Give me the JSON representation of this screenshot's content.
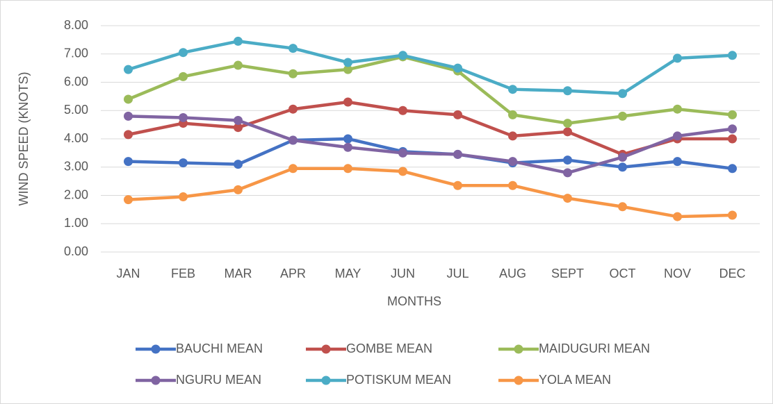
{
  "chart_data": {
    "type": "line",
    "categories": [
      "JAN",
      "FEB",
      "MAR",
      "APR",
      "MAY",
      "JUN",
      "JUL",
      "AUG",
      "SEPT",
      "OCT",
      "NOV",
      "DEC"
    ],
    "x_label": "MONTHS",
    "y_label": "WIND SPEED (KNOTS)",
    "ylim": [
      0,
      8
    ],
    "yticks": [
      {
        "value": 0,
        "label": "0.00"
      },
      {
        "value": 1,
        "label": "1.00"
      },
      {
        "value": 2,
        "label": "2.00"
      },
      {
        "value": 3,
        "label": "3.00"
      },
      {
        "value": 4,
        "label": "4.00"
      },
      {
        "value": 5,
        "label": "5.00"
      },
      {
        "value": 6,
        "label": "6.00"
      },
      {
        "value": 7,
        "label": "7.00"
      },
      {
        "value": 8,
        "label": "8.00"
      }
    ],
    "grid": true,
    "legend": "bottom",
    "series": [
      {
        "name": "BAUCHI MEAN",
        "color": "#4472c4",
        "values": [
          3.2,
          3.15,
          3.1,
          3.95,
          4.0,
          3.55,
          3.45,
          3.15,
          3.25,
          3.0,
          3.2,
          2.95
        ]
      },
      {
        "name": "GOMBE MEAN",
        "color": "#c0504d",
        "values": [
          4.15,
          4.55,
          4.4,
          5.05,
          5.3,
          5.0,
          4.85,
          4.1,
          4.25,
          3.45,
          4.0,
          4.0
        ]
      },
      {
        "name": "MAIDUGURI MEAN",
        "color": "#9bbb59",
        "values": [
          5.4,
          6.2,
          6.6,
          6.3,
          6.45,
          6.9,
          6.4,
          4.85,
          4.55,
          4.8,
          5.05,
          4.85
        ]
      },
      {
        "name": "NGURU MEAN",
        "color": "#8064a2",
        "values": [
          4.8,
          4.75,
          4.65,
          3.95,
          3.7,
          3.5,
          3.45,
          3.2,
          2.8,
          3.35,
          4.1,
          4.35
        ]
      },
      {
        "name": "POTISKUM MEAN",
        "color": "#4bacc6",
        "values": [
          6.45,
          7.05,
          7.45,
          7.2,
          6.7,
          6.95,
          6.5,
          5.75,
          5.7,
          5.6,
          6.85,
          6.95
        ]
      },
      {
        "name": "YOLA MEAN",
        "color": "#f79646",
        "values": [
          1.85,
          1.95,
          2.2,
          2.95,
          2.95,
          2.85,
          2.35,
          2.35,
          1.9,
          1.6,
          1.25,
          1.3
        ]
      }
    ]
  }
}
